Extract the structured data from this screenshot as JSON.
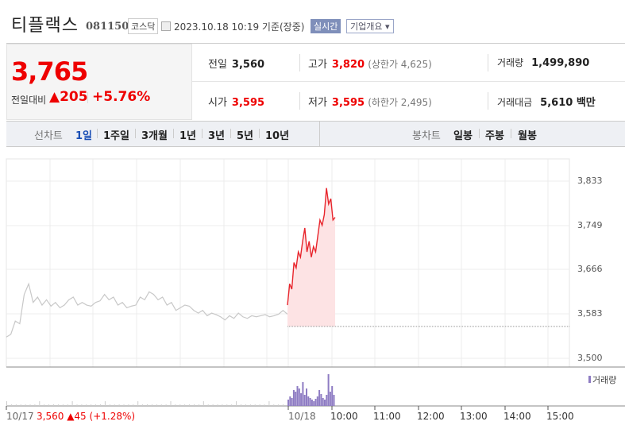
{
  "header": {
    "name": "티플랙스",
    "code": "081150",
    "market": "코스닥",
    "datetime": "2023.10.18 10:19 기준(장중)",
    "realtime_label": "실시간",
    "overview_label": "기업개요 ▾"
  },
  "quote": {
    "price": "3,765",
    "change_label": "전일대비",
    "change": "▲205",
    "change_pct": "+5.76%",
    "prev_label": "전일",
    "prev": "3,560",
    "high_label": "고가",
    "high": "3,820",
    "upper_limit": "(상한가 4,625)",
    "volume_label": "거래량",
    "volume": "1,499,890",
    "open_label": "시가",
    "open": "3,595",
    "low_label": "저가",
    "low": "3,595",
    "lower_limit": "(하한가 2,495)",
    "amount_label": "거래대금",
    "amount": "5,610 백만"
  },
  "tabs": {
    "line_label": "선차트",
    "line": [
      "1일",
      "1주일",
      "3개월",
      "1년",
      "3년",
      "5년",
      "10년"
    ],
    "selected": "1일",
    "candle_label": "봉차트",
    "candle": [
      "일봉",
      "주봉",
      "월봉"
    ]
  },
  "chart_data": {
    "type": "line",
    "y_ticks": [
      "3,833",
      "3,749",
      "3,666",
      "3,583",
      "3,500"
    ],
    "ylim": [
      3500,
      3833
    ],
    "x_ticks": [
      "10/18",
      "10:00",
      "11:00",
      "12:00",
      "13:00",
      "14:00",
      "15:00"
    ],
    "prev_day_label": "10/17",
    "prev_day_close": "3,560",
    "prev_day_change": "▲45",
    "prev_day_pct": "(+1.28%)",
    "baseline": 3560,
    "prev_day_prices": [
      3540,
      3545,
      3570,
      3565,
      3620,
      3640,
      3605,
      3615,
      3600,
      3610,
      3598,
      3605,
      3595,
      3600,
      3610,
      3615,
      3600,
      3605,
      3600,
      3598,
      3605,
      3608,
      3620,
      3610,
      3615,
      3600,
      3605,
      3595,
      3598,
      3600,
      3615,
      3610,
      3625,
      3620,
      3610,
      3615,
      3600,
      3605,
      3590,
      3595,
      3600,
      3598,
      3590,
      3585,
      3590,
      3580,
      3585,
      3582,
      3578,
      3572,
      3580,
      3575,
      3585,
      3578,
      3575,
      3580,
      3578,
      3580,
      3582,
      3578,
      3580,
      3583,
      3590,
      3583
    ],
    "today_prices": [
      3600,
      3640,
      3630,
      3680,
      3670,
      3700,
      3690,
      3720,
      3745,
      3700,
      3720,
      3690,
      3710,
      3700,
      3730,
      3760,
      3750,
      3770,
      3820,
      3790,
      3800,
      3760,
      3765
    ],
    "volume_label": "거래량",
    "volume_color": "#8e7cc3",
    "price_color": "#e8252c"
  }
}
